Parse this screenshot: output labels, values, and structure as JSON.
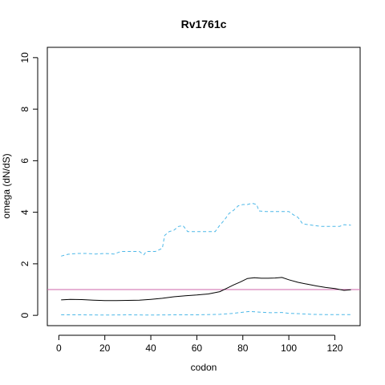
{
  "chart_data": {
    "type": "line",
    "title": "Rv1761c",
    "xlabel": "codon",
    "ylabel": "omega (dN/dS)",
    "xlim": [
      -5,
      131
    ],
    "ylim": [
      -0.4,
      10.4
    ],
    "x_ticks": [
      0,
      20,
      40,
      60,
      80,
      100,
      120
    ],
    "y_ticks": [
      0,
      2,
      4,
      6,
      8,
      10
    ],
    "grid": false,
    "legend": "none",
    "reference_line": {
      "y": 1,
      "color": "#cc66aa"
    },
    "series": [
      {
        "style": "solid",
        "color": "#000000",
        "points": [
          [
            1,
            0.6
          ],
          [
            5,
            0.62
          ],
          [
            10,
            0.61
          ],
          [
            15,
            0.59
          ],
          [
            20,
            0.57
          ],
          [
            25,
            0.57
          ],
          [
            30,
            0.58
          ],
          [
            35,
            0.59
          ],
          [
            40,
            0.62
          ],
          [
            45,
            0.66
          ],
          [
            50,
            0.72
          ],
          [
            55,
            0.76
          ],
          [
            60,
            0.79
          ],
          [
            65,
            0.83
          ],
          [
            70,
            0.92
          ],
          [
            73,
            1.05
          ],
          [
            76,
            1.18
          ],
          [
            79,
            1.3
          ],
          [
            82,
            1.43
          ],
          [
            85,
            1.46
          ],
          [
            88,
            1.44
          ],
          [
            91,
            1.44
          ],
          [
            94,
            1.45
          ],
          [
            97,
            1.47
          ],
          [
            100,
            1.38
          ],
          [
            104,
            1.28
          ],
          [
            108,
            1.21
          ],
          [
            112,
            1.14
          ],
          [
            116,
            1.08
          ],
          [
            120,
            1.04
          ],
          [
            124,
            0.97
          ],
          [
            127,
            0.99
          ]
        ]
      },
      {
        "style": "dashed",
        "color": "#4db8e8",
        "points": [
          [
            1,
            2.3
          ],
          [
            4,
            2.37
          ],
          [
            8,
            2.4
          ],
          [
            12,
            2.4
          ],
          [
            16,
            2.38
          ],
          [
            20,
            2.4
          ],
          [
            24,
            2.38
          ],
          [
            27,
            2.48
          ],
          [
            30,
            2.48
          ],
          [
            35,
            2.48
          ],
          [
            37,
            2.35
          ],
          [
            38,
            2.48
          ],
          [
            42,
            2.48
          ],
          [
            45,
            2.6
          ],
          [
            46,
            3.1
          ],
          [
            48,
            3.25
          ],
          [
            50,
            3.3
          ],
          [
            52,
            3.45
          ],
          [
            54,
            3.48
          ],
          [
            56,
            3.25
          ],
          [
            60,
            3.25
          ],
          [
            65,
            3.25
          ],
          [
            68,
            3.25
          ],
          [
            70,
            3.5
          ],
          [
            72,
            3.7
          ],
          [
            74,
            3.95
          ],
          [
            76,
            4.08
          ],
          [
            78,
            4.25
          ],
          [
            80,
            4.3
          ],
          [
            82,
            4.3
          ],
          [
            84,
            4.35
          ],
          [
            86,
            4.3
          ],
          [
            87,
            4.05
          ],
          [
            90,
            4.03
          ],
          [
            95,
            4.03
          ],
          [
            100,
            4.03
          ],
          [
            102,
            3.9
          ],
          [
            104,
            3.8
          ],
          [
            106,
            3.55
          ],
          [
            110,
            3.5
          ],
          [
            114,
            3.45
          ],
          [
            118,
            3.45
          ],
          [
            122,
            3.45
          ],
          [
            124,
            3.52
          ],
          [
            127,
            3.5
          ]
        ]
      },
      {
        "style": "dashed",
        "color": "#4db8e8",
        "points": [
          [
            1,
            0.02
          ],
          [
            10,
            0.02
          ],
          [
            20,
            0.01
          ],
          [
            30,
            0.02
          ],
          [
            40,
            0.01
          ],
          [
            50,
            0.02
          ],
          [
            60,
            0.02
          ],
          [
            70,
            0.04
          ],
          [
            75,
            0.07
          ],
          [
            80,
            0.12
          ],
          [
            83,
            0.15
          ],
          [
            88,
            0.12
          ],
          [
            92,
            0.1
          ],
          [
            97,
            0.11
          ],
          [
            100,
            0.08
          ],
          [
            105,
            0.06
          ],
          [
            110,
            0.04
          ],
          [
            115,
            0.03
          ],
          [
            120,
            0.03
          ],
          [
            127,
            0.03
          ]
        ]
      }
    ]
  }
}
